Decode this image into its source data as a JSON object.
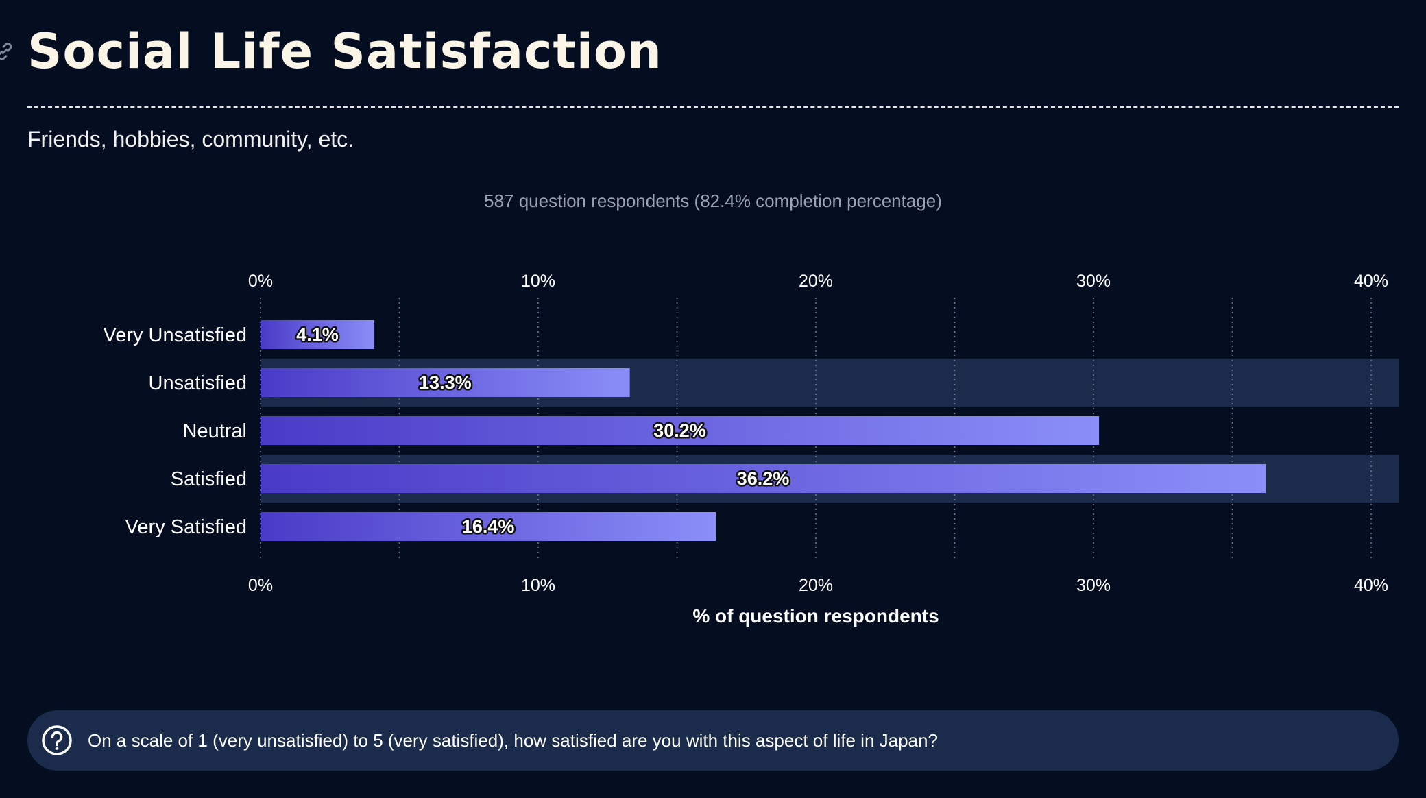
{
  "page": {
    "title": "Social Life Satisfaction",
    "subtitle": "Friends, hobbies, community, etc.",
    "respondents": "587 question respondents (82.4% completion percentage)",
    "question": "On a scale of 1 (very unsatisfied) to 5 (very satisfied), how satisfied are you with this aspect of life in Japan?",
    "link_icon": "link-icon",
    "question_icon": "question-circle-icon"
  },
  "chart_data": {
    "type": "bar",
    "orientation": "horizontal",
    "categories": [
      "Very Unsatisfied",
      "Unsatisfied",
      "Neutral",
      "Satisfied",
      "Very Satisfied"
    ],
    "values": [
      4.1,
      13.3,
      30.2,
      36.2,
      16.4
    ],
    "value_labels": [
      "4.1%",
      "13.3%",
      "30.2%",
      "36.2%",
      "16.4%"
    ],
    "xlabel": "% of question respondents",
    "xlim": [
      0,
      41
    ],
    "xticks": [
      0,
      10,
      20,
      30,
      40
    ],
    "xtick_labels": [
      "0%",
      "10%",
      "20%",
      "30%",
      "40%"
    ],
    "minor_grid": [
      5,
      15,
      25,
      35
    ],
    "grid": true,
    "colors": {
      "bar_start": "#4a3bc7",
      "bar_end": "#8b8ef8",
      "row_band": "#1b2b4b",
      "background": "#050d21"
    }
  }
}
